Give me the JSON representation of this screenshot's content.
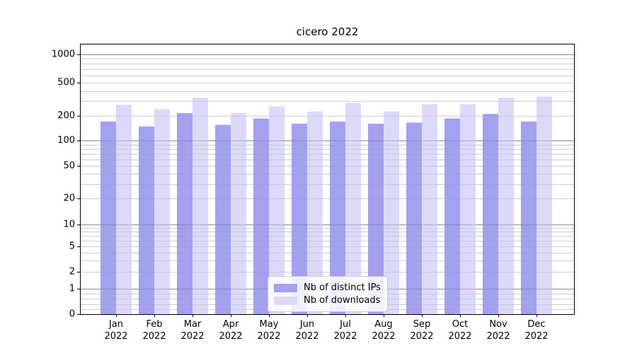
{
  "chart_data": {
    "type": "bar",
    "title": "cicero 2022",
    "categories": [
      "Jan",
      "Feb",
      "Mar",
      "Apr",
      "May",
      "Jun",
      "Jul",
      "Aug",
      "Sep",
      "Oct",
      "Nov",
      "Dec"
    ],
    "year": "2022",
    "series": [
      {
        "name": "Nb of distinct IPs",
        "color": "#a3a1f0",
        "values": [
          170,
          148,
          215,
          155,
          185,
          160,
          170,
          160,
          165,
          185,
          210,
          170
        ]
      },
      {
        "name": "Nb of downloads",
        "color": "#dcdaf8",
        "values": [
          270,
          240,
          330,
          215,
          260,
          225,
          285,
          225,
          275,
          275,
          330,
          340
        ]
      }
    ],
    "yticks": [
      0,
      1,
      2,
      5,
      10,
      20,
      50,
      100,
      200,
      500,
      1000
    ],
    "ylim": [
      0,
      1350
    ],
    "scale": {
      "type": "symlog-like",
      "anchors": [
        [
          0,
          0.0
        ],
        [
          1,
          0.094
        ],
        [
          2,
          0.157
        ],
        [
          5,
          0.251
        ],
        [
          10,
          0.332
        ],
        [
          20,
          0.428
        ],
        [
          50,
          0.548
        ],
        [
          100,
          0.642
        ],
        [
          200,
          0.734
        ],
        [
          500,
          0.856
        ],
        [
          1000,
          0.961
        ]
      ]
    },
    "grid": {
      "major_values": [
        1,
        10,
        100,
        1000
      ],
      "minor_values": [
        0.2,
        0.4,
        0.6,
        0.8,
        2,
        3,
        4,
        5,
        6,
        7,
        8,
        9,
        20,
        30,
        40,
        50,
        60,
        70,
        80,
        90,
        200,
        300,
        400,
        500,
        600,
        700,
        800,
        900
      ],
      "major_color": "#9f9f9f",
      "minor_color": "#e2e2e3"
    },
    "legend": {
      "position": "lower-center"
    },
    "colors": {
      "spine": "#000000",
      "background": "#ffffff"
    }
  }
}
